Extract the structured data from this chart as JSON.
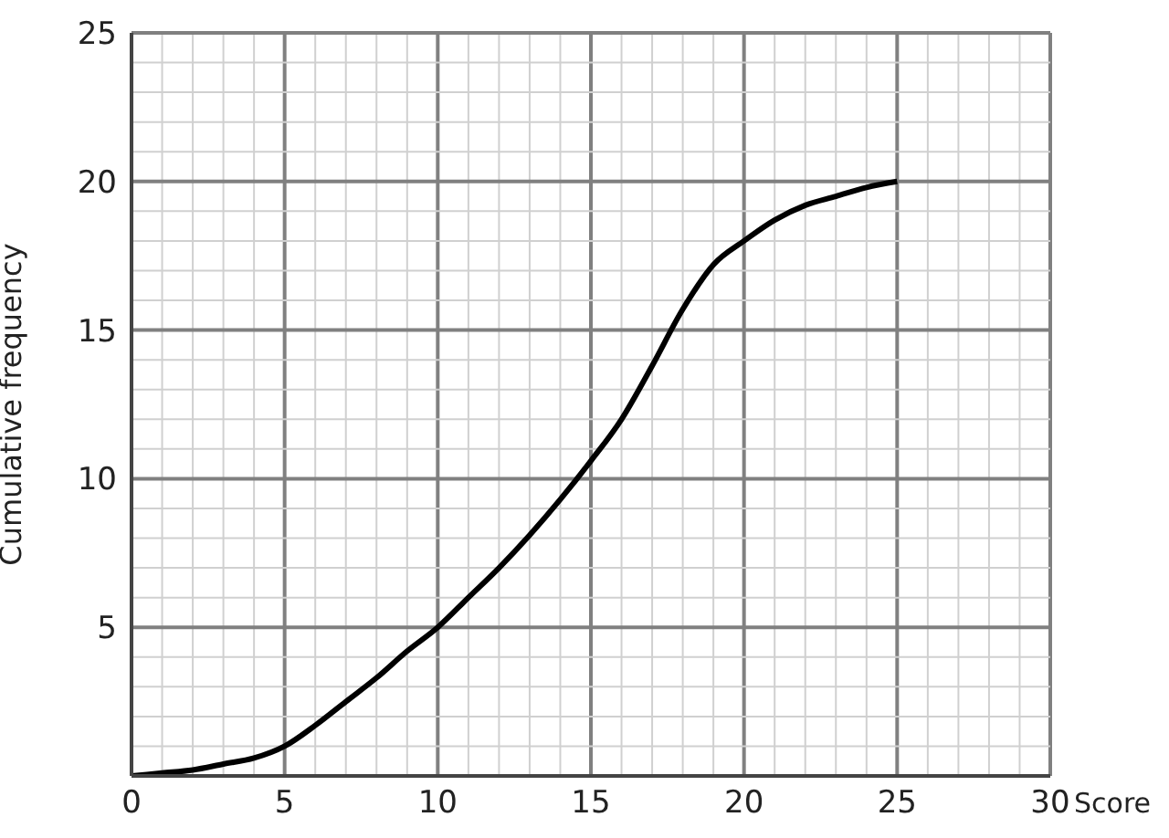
{
  "chart_data": {
    "type": "line",
    "xlabel": "Score",
    "ylabel": "Cumulative frequency",
    "x": [
      0,
      1,
      2,
      3,
      4,
      5,
      6,
      7,
      8,
      9,
      10,
      11,
      12,
      13,
      14,
      15,
      16,
      17,
      18,
      19,
      20,
      21,
      22,
      23,
      24,
      25
    ],
    "series": [
      {
        "color": "#000000",
        "values": [
          0,
          0.1,
          0.2,
          0.4,
          0.6,
          1,
          1.7,
          2.5,
          3.3,
          4.2,
          5,
          6,
          7,
          8.1,
          9.3,
          10.6,
          12,
          13.8,
          15.7,
          17.2,
          18,
          18.7,
          19.2,
          19.5,
          19.8,
          20
        ]
      }
    ],
    "xlim": [
      0,
      30
    ],
    "ylim": [
      0,
      25
    ],
    "xticks": [
      0,
      {
        "value": 1,
        "label": null
      },
      {
        "value": 2,
        "label": null
      },
      {
        "value": 3,
        "label": null
      },
      {
        "value": 4,
        "label": null
      },
      5,
      {
        "value": 6,
        "label": null
      },
      {
        "value": 7,
        "label": null
      },
      {
        "value": 8,
        "label": null
      },
      {
        "value": 9,
        "label": null
      },
      10,
      {
        "value": 11,
        "label": null
      },
      {
        "value": 12,
        "label": null
      },
      {
        "value": 13,
        "label": null
      },
      {
        "value": 14,
        "label": null
      },
      15,
      {
        "value": 16,
        "label": null
      },
      {
        "value": 17,
        "label": null
      },
      {
        "value": 18,
        "label": null
      },
      {
        "value": 19,
        "label": null
      },
      20,
      {
        "value": 21,
        "label": null
      },
      {
        "value": 22,
        "label": null
      },
      {
        "value": 23,
        "label": null
      },
      {
        "value": 24,
        "label": null
      },
      25,
      {
        "value": 26,
        "label": null
      },
      {
        "value": 27,
        "label": null
      },
      {
        "value": 28,
        "label": null
      },
      {
        "value": 29,
        "label": null
      },
      30
    ],
    "yticks": [
      {
        "value": 0,
        "label": null
      },
      {
        "value": 1,
        "label": null
      },
      {
        "value": 2,
        "label": null
      },
      {
        "value": 3,
        "label": null
      },
      {
        "value": 4,
        "label": null
      },
      5,
      {
        "value": 6,
        "label": null
      },
      {
        "value": 7,
        "label": null
      },
      {
        "value": 8,
        "label": null
      },
      {
        "value": 9,
        "label": null
      },
      10,
      {
        "value": 11,
        "label": null
      },
      {
        "value": 12,
        "label": null
      },
      {
        "value": 13,
        "label": null
      },
      {
        "value": 14,
        "label": null
      },
      15,
      {
        "value": 16,
        "label": null
      },
      {
        "value": 17,
        "label": null
      },
      {
        "value": 18,
        "label": null
      },
      {
        "value": 19,
        "label": null
      },
      20,
      {
        "value": 21,
        "label": null
      },
      {
        "value": 22,
        "label": null
      },
      {
        "value": 23,
        "label": null
      },
      {
        "value": 24,
        "label": null
      },
      25
    ],
    "grid": true,
    "marker": "none",
    "line_style": "solid"
  }
}
